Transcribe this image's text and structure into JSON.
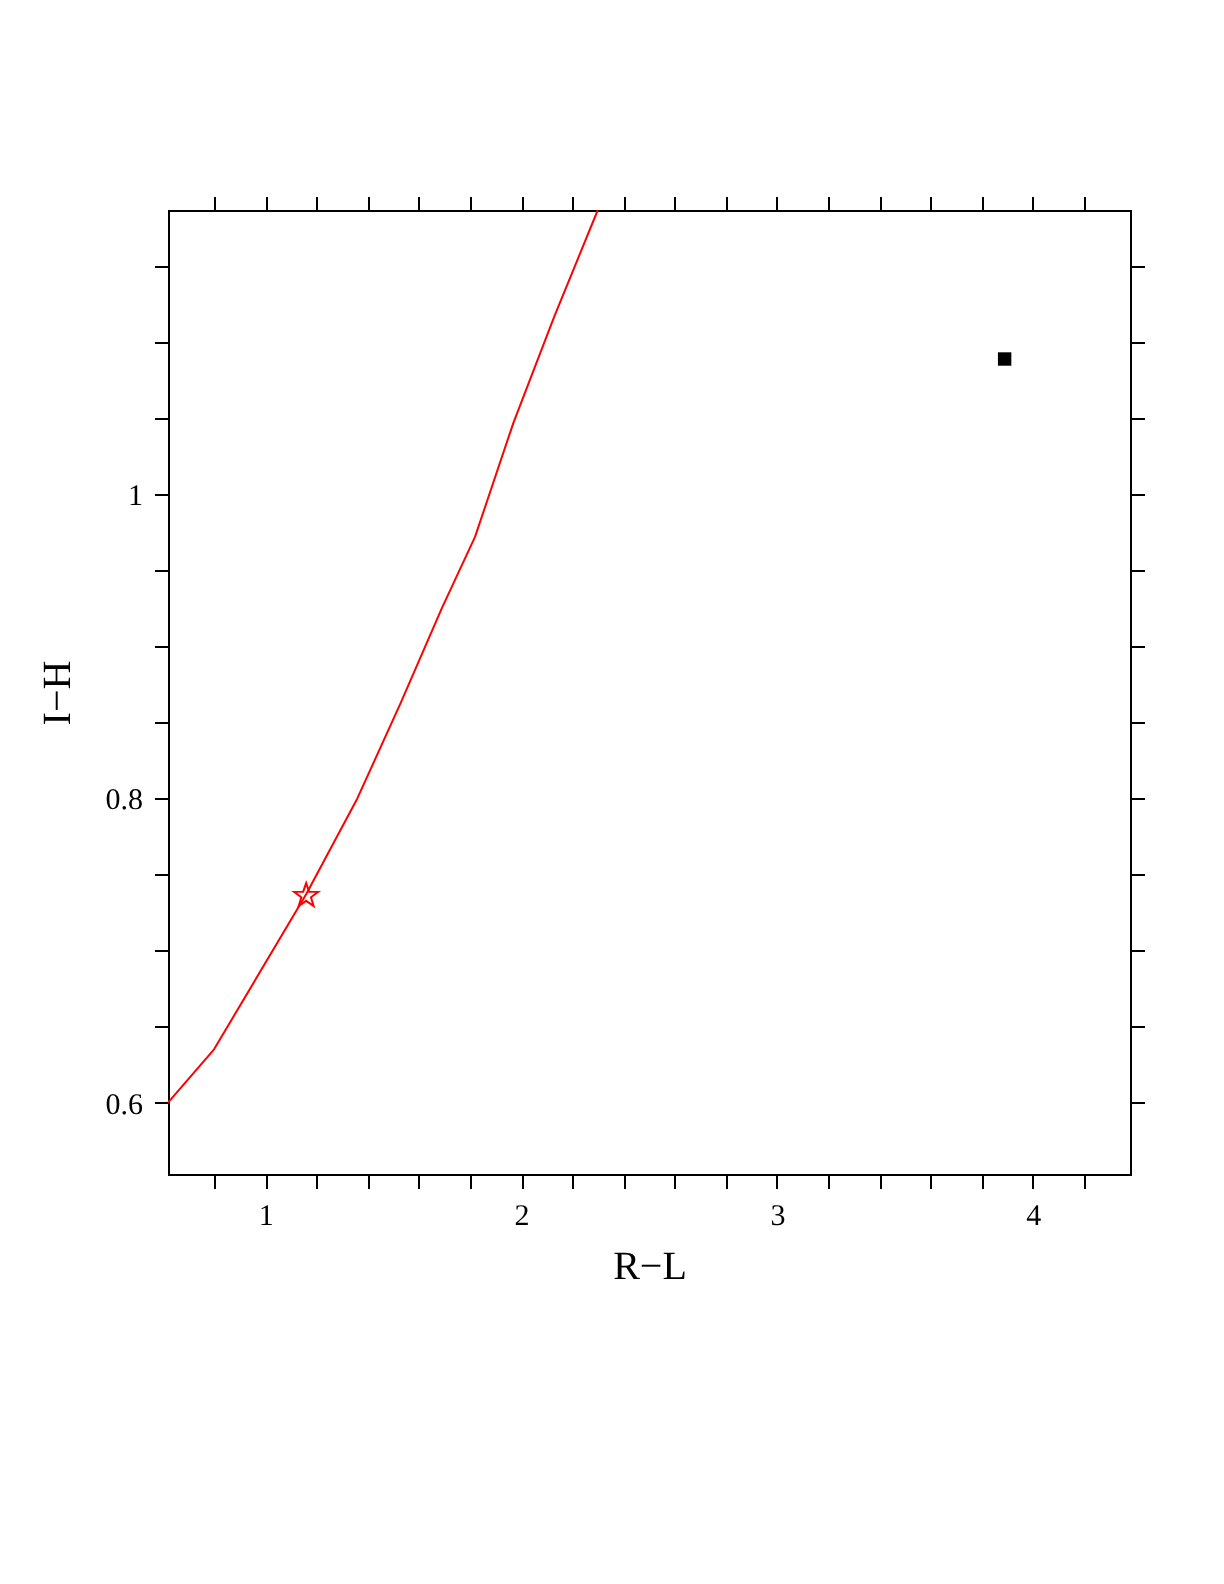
{
  "chart_data": {
    "type": "line",
    "xlabel": "R−L",
    "ylabel": "I−H",
    "xlim": [
      0.62,
      4.38
    ],
    "ylim": [
      0.553,
      1.187
    ],
    "xticks": [
      {
        "value": 0.8,
        "label": null
      },
      1,
      {
        "value": 1.2,
        "label": null
      },
      {
        "value": 1.4,
        "label": null
      },
      {
        "value": 1.6,
        "label": null
      },
      {
        "value": 1.8,
        "label": null
      },
      2,
      {
        "value": 2.2,
        "label": null
      },
      {
        "value": 2.4,
        "label": null
      },
      {
        "value": 2.6,
        "label": null
      },
      {
        "value": 2.8,
        "label": null
      },
      3,
      {
        "value": 3.2,
        "label": null
      },
      {
        "value": 3.4,
        "label": null
      },
      {
        "value": 3.6,
        "label": null
      },
      {
        "value": 3.8,
        "label": null
      },
      4,
      {
        "value": 4.2,
        "label": null
      }
    ],
    "yticks": [
      0.6,
      {
        "value": 0.65,
        "label": null
      },
      {
        "value": 0.7,
        "label": null
      },
      {
        "value": 0.75,
        "label": null
      },
      0.8,
      {
        "value": 0.85,
        "label": null
      },
      {
        "value": 0.9,
        "label": null
      },
      {
        "value": 0.95,
        "label": null
      },
      1,
      {
        "value": 1.05,
        "label": null
      },
      {
        "value": 1.1,
        "label": null
      },
      {
        "value": 1.15,
        "label": null
      }
    ],
    "grid": false,
    "series": [
      {
        "color": "#ff0000",
        "marker": "none",
        "x": [
          0.62,
          0.8,
          1.16,
          1.36,
          1.53,
          1.69,
          1.82,
          1.97,
          2.13,
          2.3
        ],
        "values": [
          0.6,
          0.635,
          0.737,
          0.8,
          0.863,
          0.925,
          0.972,
          1.047,
          1.117,
          1.187
        ]
      },
      {
        "type": "scatter",
        "color": "#ff0000",
        "marker": "star",
        "x": [
          1.16
        ],
        "values": [
          0.736
        ]
      },
      {
        "type": "scatter",
        "color": "#000000",
        "marker": "square",
        "x": [
          3.89
        ],
        "values": [
          1.089
        ]
      }
    ]
  }
}
